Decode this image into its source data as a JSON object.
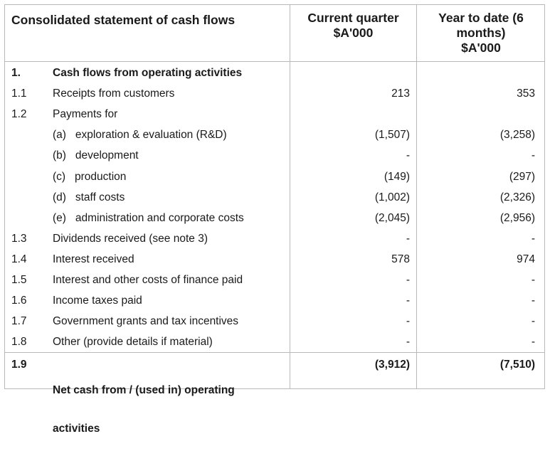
{
  "header": {
    "title": "Consolidated statement of cash flows",
    "col_current": [
      "Current quarter",
      "$A'000"
    ],
    "col_ytd": [
      "Year to date (6",
      "months)",
      "$A'000"
    ]
  },
  "rows": [
    {
      "num": "1.",
      "desc": "Cash flows from operating activities",
      "cq": "",
      "ytd": "",
      "bold": true
    },
    {
      "num": "1.1",
      "desc": "Receipts from customers",
      "cq": "213",
      "ytd": "353"
    },
    {
      "num": "1.2",
      "desc": "Payments for",
      "cq": "",
      "ytd": ""
    },
    {
      "num": "",
      "desc": "(a)   exploration & evaluation (R&D)",
      "cq": "(1,507)",
      "ytd": "(3,258)"
    },
    {
      "num": "",
      "desc": "(b)   development",
      "cq": "-",
      "ytd": "-"
    },
    {
      "num": "",
      "desc": "(c)   production",
      "cq": "(149)",
      "ytd": "(297)"
    },
    {
      "num": "",
      "desc": "(d)   staff costs",
      "cq": "(1,002)",
      "ytd": "(2,326)"
    },
    {
      "num": "",
      "desc": "(e)   administration and corporate costs",
      "cq": "(2,045)",
      "ytd": "(2,956)"
    },
    {
      "num": "1.3",
      "desc": "Dividends received (see note 3)",
      "cq": "-",
      "ytd": "-"
    },
    {
      "num": "1.4",
      "desc": "Interest received",
      "cq": "578",
      "ytd": "974"
    },
    {
      "num": "1.5",
      "desc": "Interest and other costs of finance paid",
      "cq": "-",
      "ytd": "-"
    },
    {
      "num": "1.6",
      "desc": "Income taxes paid",
      "cq": "-",
      "ytd": "-"
    },
    {
      "num": "1.7",
      "desc": "Government grants and tax incentives",
      "cq": "-",
      "ytd": "-"
    },
    {
      "num": "1.8",
      "desc": "Other (provide details if material)",
      "cq": "-",
      "ytd": "-"
    }
  ],
  "total": {
    "num": "1.9",
    "desc_line1": "Net cash from / (used in) operating",
    "desc_line2": "activities",
    "cq": "(3,912)",
    "ytd": "(7,510)"
  }
}
